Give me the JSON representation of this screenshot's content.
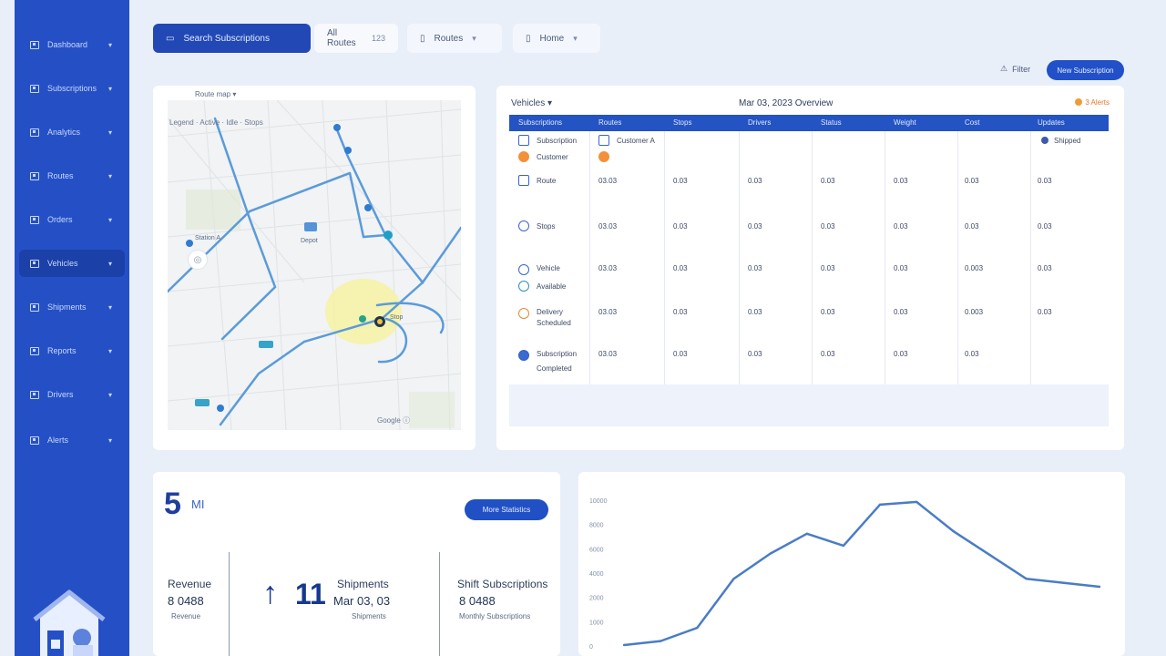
{
  "sidebar": {
    "items": [
      {
        "label": "Dashboard",
        "active": false
      },
      {
        "label": "Subscriptions",
        "active": false
      },
      {
        "label": "Analytics",
        "active": false
      },
      {
        "label": "Routes",
        "active": false
      },
      {
        "label": "Orders",
        "active": false
      },
      {
        "label": "Vehicles",
        "active": true
      },
      {
        "label": "Shipments",
        "active": false
      },
      {
        "label": "Reports",
        "active": false
      },
      {
        "label": "Drivers",
        "active": false
      },
      {
        "label": "Alerts",
        "active": false
      }
    ],
    "chevron": "▾"
  },
  "filters": [
    {
      "icon": "▭",
      "label": "Search Subscriptions",
      "extra": "",
      "primary": true
    },
    {
      "icon": "",
      "label": "All Routes",
      "extra": "123",
      "primary": false
    },
    {
      "icon": "▯",
      "label": "Routes",
      "extra": "▾",
      "primary": false
    },
    {
      "icon": "▯",
      "label": "Home",
      "extra": "▾",
      "primary": false
    }
  ],
  "header": {
    "link_label": "Filter",
    "link_icon": "⚠",
    "button_label": "New Subscription"
  },
  "map": {
    "title": "Route map ▾",
    "legend": "Legend · Active · Idle · Stops",
    "locate_icon": "◎",
    "footer": "Google ⓘ",
    "labels": [
      "Station A",
      "Depot",
      "Stop"
    ]
  },
  "table": {
    "dropdown": "Vehicles ▾",
    "title": "Mar 03, 2023 Overview",
    "orange_note": "3 Alerts",
    "columns": [
      "Subscriptions",
      "Routes",
      "Stops",
      "Drivers",
      "Status",
      "Weight",
      "Cost",
      "Updates"
    ],
    "rows": [
      {
        "name": "Subscription",
        "name2": "Customer",
        "name3": "Customer A",
        "values": [
          "",
          "",
          "",
          "",
          "",
          "",
          ""
        ],
        "last": "Shipped"
      },
      {
        "name": "Route",
        "values": [
          "03.03",
          "0.03",
          "0.03",
          "0.03",
          "0.03",
          "0.03",
          "0.03"
        ],
        "last": ""
      },
      {
        "name": "Stops",
        "values": [
          "03.03",
          "0.03",
          "0.03",
          "0.03",
          "0.03",
          "0.03",
          "0.03"
        ],
        "last": ""
      },
      {
        "name": "Vehicle",
        "name2": "Available",
        "values": [
          "03.03",
          "0.03",
          "0.03",
          "0.03",
          "0.03",
          "0.003",
          "0.03"
        ],
        "last": ""
      },
      {
        "name": "Delivery",
        "name2": "Scheduled",
        "values": [
          "03.03",
          "0.03",
          "0.03",
          "0.03",
          "0.03",
          "0.003",
          "0.03"
        ],
        "last": ""
      },
      {
        "name": "Subscription",
        "name2": "Completed",
        "values": [
          "03.03",
          "0.03",
          "0.03",
          "0.03",
          "0.03",
          "0.03",
          ""
        ],
        "last": ""
      }
    ]
  },
  "stats": {
    "big_number": "5",
    "big_unit": "MI",
    "button_label": "More Statistics",
    "col1_label": "Revenue",
    "col1_value": "8 0488",
    "col1_sub": "Revenue",
    "arrow": "↑",
    "arrow_num": "11",
    "col2_label": "Shipments",
    "col2_value": "Mar 03, 03",
    "col2_sub": "Shipments",
    "col3_label": "Shift Subscriptions",
    "col3_value": "8 0488",
    "col3_sub": "Monthly Subscriptions"
  },
  "chart_data": {
    "type": "line",
    "title": "",
    "xlabel": "",
    "ylabel": "",
    "y_tick_labels": [
      "10000",
      "8000",
      "6000",
      "4000",
      "2000",
      "1000",
      "0"
    ],
    "ylim": [
      0,
      11000
    ],
    "x": [
      1,
      2,
      3,
      4,
      5,
      6,
      7,
      8,
      9,
      10,
      11,
      12,
      13,
      14
    ],
    "series": [
      {
        "values": [
          0,
          300,
          1300,
          5000,
          6900,
          8400,
          7500,
          10600,
          10800,
          8600,
          6800,
          5000,
          4700,
          4400
        ]
      }
    ],
    "grid": false,
    "color": "#4a7cc6"
  }
}
